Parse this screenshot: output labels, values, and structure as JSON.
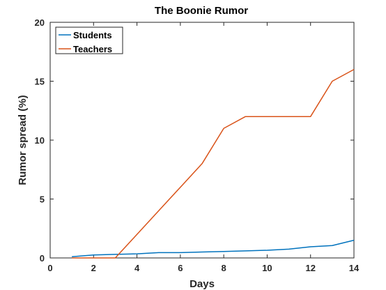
{
  "chart_data": {
    "type": "line",
    "title": "The Boonie Rumor",
    "xlabel": "Days",
    "ylabel": "Rumor spread (%)",
    "xlim": [
      0,
      14
    ],
    "ylim": [
      0,
      20
    ],
    "xticks": [
      0,
      2,
      4,
      6,
      8,
      10,
      12,
      14
    ],
    "yticks": [
      0,
      5,
      10,
      15,
      20
    ],
    "grid": false,
    "legend_position": "top-left",
    "x": [
      1,
      2,
      3,
      4,
      5,
      6,
      7,
      8,
      9,
      10,
      11,
      12,
      13,
      14
    ],
    "series": [
      {
        "name": "Students",
        "color": "#0072BD",
        "values": [
          0.1,
          0.25,
          0.3,
          0.35,
          0.45,
          0.45,
          0.5,
          0.55,
          0.6,
          0.65,
          0.75,
          0.95,
          1.05,
          1.5
        ]
      },
      {
        "name": "Teachers",
        "color": "#D95319",
        "values": [
          0,
          0,
          0,
          2,
          4,
          6,
          8,
          11,
          12,
          12,
          12,
          12,
          15,
          16
        ]
      }
    ]
  }
}
